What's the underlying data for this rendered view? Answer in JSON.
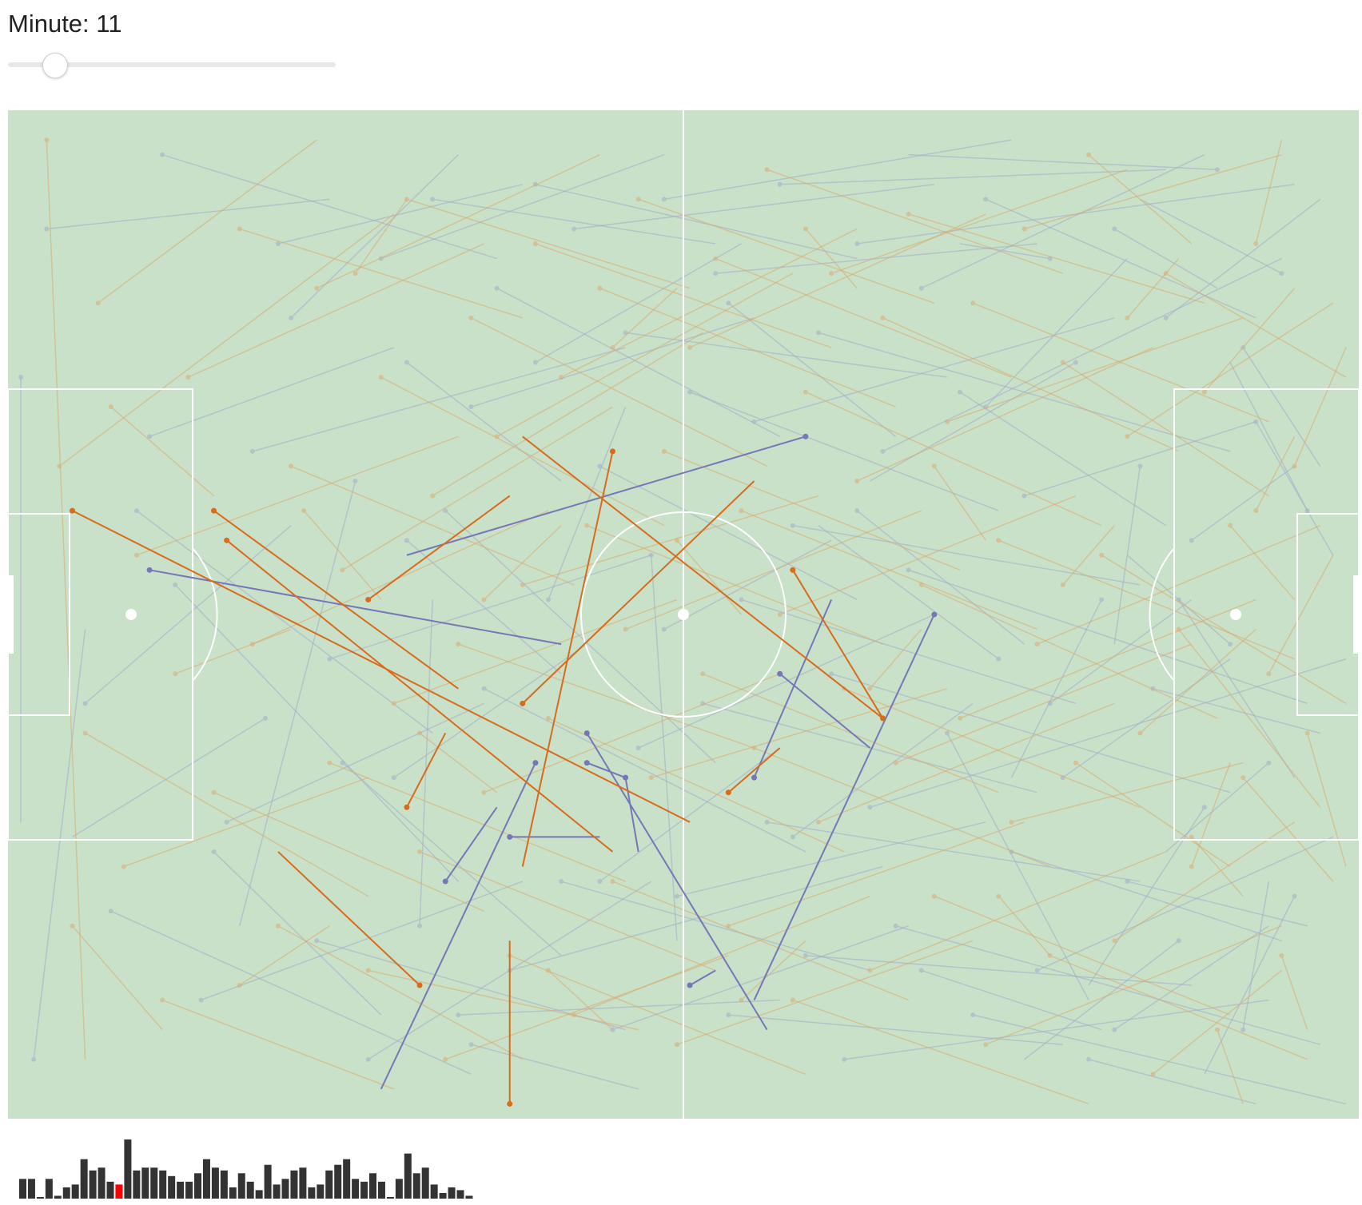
{
  "control": {
    "label_prefix": "Minute: ",
    "minute": 11,
    "min": 0,
    "max": 90
  },
  "colors": {
    "pitch": "#c8e1c8",
    "lines": "#ffffff",
    "team_home": "#d96b1c",
    "team_away": "#7777b8",
    "faded_home": "#d9ab70",
    "faded_away": "#a4acc9",
    "timeline_bar": "#333333",
    "timeline_selected": "#ff0000"
  },
  "pitch_size": [
    105,
    68
  ],
  "highlighted_passes": {
    "away": [
      [
        11,
        31,
        43,
        36
      ],
      [
        45,
        42,
        59,
        62
      ],
      [
        45,
        44,
        48,
        45
      ],
      [
        41,
        44,
        29,
        66
      ],
      [
        72,
        34,
        58,
        60
      ],
      [
        62,
        22,
        31,
        30
      ],
      [
        60,
        38,
        67,
        43
      ],
      [
        58,
        45,
        64,
        33
      ],
      [
        48,
        45,
        49,
        50
      ],
      [
        53,
        59,
        55,
        58
      ],
      [
        34,
        52,
        38,
        47
      ],
      [
        39,
        49,
        46,
        49
      ]
    ],
    "home": [
      [
        5,
        27,
        53,
        48
      ],
      [
        17,
        29,
        47,
        50
      ],
      [
        16,
        27,
        35,
        39
      ],
      [
        28,
        33,
        39,
        26
      ],
      [
        47,
        23,
        40,
        51
      ],
      [
        32,
        59,
        21,
        50
      ],
      [
        56,
        46,
        60,
        43
      ],
      [
        61,
        31,
        68,
        41
      ],
      [
        68,
        41,
        40,
        22
      ],
      [
        40,
        40,
        58,
        25
      ],
      [
        31,
        47,
        34,
        42
      ],
      [
        39,
        67,
        39,
        56
      ]
    ]
  },
  "faded_passes": {
    "away": [
      [
        1,
        18,
        1,
        48
      ],
      [
        2,
        64,
        6,
        35
      ],
      [
        8,
        54,
        36,
        65
      ],
      [
        10,
        27,
        33,
        42
      ],
      [
        12,
        3,
        38,
        10
      ],
      [
        13,
        32,
        35,
        52
      ],
      [
        15,
        60,
        40,
        52
      ],
      [
        17,
        48,
        37,
        40
      ],
      [
        19,
        23,
        48,
        16
      ],
      [
        20,
        41,
        5,
        49
      ],
      [
        22,
        14,
        35,
        3
      ],
      [
        24,
        56,
        48,
        62
      ],
      [
        25,
        37,
        50,
        30
      ],
      [
        27,
        25,
        18,
        55
      ],
      [
        28,
        64,
        50,
        52
      ],
      [
        29,
        10,
        51,
        3
      ],
      [
        30,
        45,
        45,
        36
      ],
      [
        31,
        17,
        43,
        25
      ],
      [
        32,
        55,
        33,
        33
      ],
      [
        33,
        6,
        55,
        9
      ],
      [
        34,
        27,
        55,
        44
      ],
      [
        35,
        61,
        60,
        60
      ],
      [
        36,
        20,
        58,
        14
      ],
      [
        37,
        39,
        62,
        50
      ],
      [
        38,
        12,
        60,
        22
      ],
      [
        39,
        58,
        68,
        51
      ],
      [
        41,
        5,
        66,
        10
      ],
      [
        42,
        33,
        48,
        20
      ],
      [
        43,
        52,
        67,
        58
      ],
      [
        44,
        8,
        72,
        5
      ],
      [
        46,
        24,
        66,
        33
      ],
      [
        47,
        62,
        70,
        55
      ],
      [
        48,
        15,
        73,
        18
      ],
      [
        49,
        43,
        72,
        34
      ],
      [
        50,
        30,
        52,
        56
      ],
      [
        51,
        6,
        78,
        2
      ],
      [
        52,
        53,
        76,
        48
      ],
      [
        53,
        19,
        77,
        27
      ],
      [
        54,
        40,
        80,
        46
      ],
      [
        55,
        11,
        80,
        9
      ],
      [
        56,
        61,
        82,
        63
      ],
      [
        57,
        33,
        83,
        40
      ],
      [
        58,
        21,
        86,
        14
      ],
      [
        59,
        48,
        88,
        52
      ],
      [
        60,
        5,
        90,
        4
      ],
      [
        61,
        28,
        88,
        32
      ],
      [
        62,
        57,
        92,
        59
      ],
      [
        63,
        15,
        95,
        23
      ],
      [
        64,
        38,
        95,
        46
      ],
      [
        65,
        64,
        98,
        60
      ],
      [
        66,
        9,
        100,
        5
      ],
      [
        67,
        47,
        104,
        37
      ],
      [
        68,
        23,
        99,
        10
      ],
      [
        69,
        55,
        102,
        63
      ],
      [
        70,
        31,
        101,
        40
      ],
      [
        71,
        12,
        93,
        3
      ],
      [
        73,
        42,
        84,
        60
      ],
      [
        74,
        19,
        90,
        28
      ],
      [
        75,
        61,
        104,
        67
      ],
      [
        76,
        6,
        97,
        14
      ],
      [
        77,
        37,
        63,
        28
      ],
      [
        78,
        50,
        99,
        56
      ],
      [
        79,
        26,
        97,
        21
      ],
      [
        80,
        58,
        103,
        49
      ],
      [
        81,
        10,
        74,
        9
      ],
      [
        82,
        45,
        95,
        37
      ],
      [
        83,
        17,
        67,
        25
      ],
      [
        84,
        64,
        97,
        67
      ],
      [
        85,
        33,
        78,
        45
      ],
      [
        86,
        8,
        94,
        12
      ],
      [
        87,
        52,
        101,
        55
      ],
      [
        88,
        24,
        86,
        36
      ],
      [
        89,
        39,
        102,
        42
      ],
      [
        90,
        14,
        102,
        6
      ],
      [
        91,
        56,
        79,
        64
      ],
      [
        92,
        29,
        100,
        24
      ],
      [
        93,
        47,
        84,
        59
      ],
      [
        94,
        4,
        70,
        3
      ],
      [
        95,
        36,
        87,
        30
      ],
      [
        96,
        62,
        98,
        52
      ],
      [
        97,
        21,
        103,
        30
      ],
      [
        98,
        44,
        90,
        50
      ],
      [
        99,
        11,
        88,
        6
      ],
      [
        100,
        53,
        93,
        65
      ],
      [
        101,
        27,
        95,
        17
      ],
      [
        6,
        40,
        22,
        28
      ],
      [
        11,
        22,
        30,
        16
      ],
      [
        16,
        50,
        29,
        61
      ],
      [
        21,
        9,
        40,
        5
      ],
      [
        26,
        44,
        43,
        57
      ],
      [
        31,
        29,
        43,
        38
      ],
      [
        36,
        63,
        49,
        66
      ],
      [
        41,
        17,
        57,
        9
      ],
      [
        46,
        52,
        60,
        43
      ],
      [
        51,
        35,
        64,
        29
      ],
      [
        56,
        13,
        69,
        22
      ],
      [
        61,
        49,
        75,
        40
      ],
      [
        66,
        27,
        79,
        36
      ],
      [
        71,
        58,
        85,
        62
      ],
      [
        76,
        20,
        87,
        10
      ],
      [
        81,
        40,
        92,
        33
      ],
      [
        86,
        62,
        98,
        55
      ],
      [
        91,
        33,
        100,
        45
      ],
      [
        96,
        16,
        102,
        24
      ],
      [
        3,
        8,
        25,
        6
      ]
    ],
    "home": [
      [
        3,
        2,
        6,
        64
      ],
      [
        4,
        24,
        30,
        7
      ],
      [
        6,
        42,
        28,
        53
      ],
      [
        7,
        13,
        24,
        2
      ],
      [
        9,
        51,
        28,
        45
      ],
      [
        10,
        30,
        35,
        22
      ],
      [
        12,
        60,
        30,
        66
      ],
      [
        14,
        18,
        37,
        9
      ],
      [
        16,
        46,
        37,
        54
      ],
      [
        18,
        8,
        40,
        14
      ],
      [
        19,
        36,
        42,
        27
      ],
      [
        21,
        55,
        40,
        64
      ],
      [
        22,
        24,
        44,
        32
      ],
      [
        24,
        12,
        46,
        3
      ],
      [
        25,
        44,
        48,
        52
      ],
      [
        26,
        31,
        47,
        20
      ],
      [
        28,
        58,
        49,
        62
      ],
      [
        29,
        18,
        51,
        28
      ],
      [
        30,
        40,
        52,
        33
      ],
      [
        31,
        6,
        53,
        12
      ],
      [
        32,
        50,
        55,
        58
      ],
      [
        33,
        26,
        54,
        15
      ],
      [
        34,
        64,
        56,
        57
      ],
      [
        35,
        36,
        58,
        43
      ],
      [
        36,
        14,
        59,
        24
      ],
      [
        37,
        46,
        60,
        38
      ],
      [
        38,
        22,
        61,
        11
      ],
      [
        39,
        57,
        62,
        65
      ],
      [
        40,
        32,
        63,
        26
      ],
      [
        41,
        9,
        64,
        16
      ],
      [
        42,
        41,
        65,
        50
      ],
      [
        43,
        18,
        66,
        8
      ],
      [
        44,
        61,
        67,
        53
      ],
      [
        45,
        28,
        68,
        36
      ],
      [
        46,
        12,
        69,
        20
      ],
      [
        47,
        52,
        70,
        60
      ],
      [
        48,
        35,
        71,
        27
      ],
      [
        49,
        6,
        72,
        13
      ],
      [
        50,
        45,
        73,
        39
      ],
      [
        51,
        23,
        74,
        31
      ],
      [
        52,
        63,
        75,
        56
      ],
      [
        53,
        16,
        76,
        7
      ],
      [
        54,
        38,
        77,
        46
      ],
      [
        55,
        10,
        78,
        18
      ],
      [
        56,
        55,
        79,
        48
      ],
      [
        57,
        27,
        80,
        35
      ],
      [
        58,
        43,
        81,
        51
      ],
      [
        59,
        4,
        82,
        11
      ],
      [
        60,
        34,
        83,
        26
      ],
      [
        61,
        60,
        84,
        67
      ],
      [
        62,
        19,
        85,
        28
      ],
      [
        63,
        48,
        86,
        40
      ],
      [
        64,
        11,
        87,
        4
      ],
      [
        65,
        39,
        88,
        47
      ],
      [
        66,
        25,
        89,
        16
      ],
      [
        67,
        58,
        90,
        50
      ],
      [
        68,
        14,
        91,
        23
      ],
      [
        69,
        44,
        92,
        36
      ],
      [
        70,
        7,
        93,
        13
      ],
      [
        71,
        32,
        94,
        41
      ],
      [
        72,
        53,
        95,
        61
      ],
      [
        73,
        21,
        96,
        14
      ],
      [
        74,
        41,
        97,
        33
      ],
      [
        75,
        13,
        98,
        21
      ],
      [
        76,
        63,
        99,
        55
      ],
      [
        77,
        29,
        100,
        37
      ],
      [
        78,
        48,
        96,
        44
      ],
      [
        79,
        8,
        99,
        3
      ],
      [
        80,
        36,
        102,
        28
      ],
      [
        81,
        57,
        101,
        64
      ],
      [
        82,
        17,
        98,
        26
      ],
      [
        83,
        44,
        95,
        51
      ],
      [
        84,
        3,
        92,
        9
      ],
      [
        85,
        30,
        104,
        40
      ],
      [
        86,
        56,
        100,
        48
      ],
      [
        87,
        22,
        103,
        13
      ],
      [
        88,
        42,
        97,
        35
      ],
      [
        89,
        65,
        99,
        58
      ],
      [
        90,
        11,
        104,
        18
      ],
      [
        91,
        35,
        102,
        47
      ],
      [
        92,
        51,
        95,
        44
      ],
      [
        93,
        19,
        100,
        12
      ],
      [
        94,
        62,
        96,
        67
      ],
      [
        95,
        28,
        100,
        33
      ],
      [
        96,
        45,
        103,
        52
      ],
      [
        97,
        9,
        99,
        2
      ],
      [
        98,
        38,
        103,
        30
      ],
      [
        99,
        57,
        101,
        62
      ],
      [
        100,
        24,
        104,
        16
      ],
      [
        101,
        42,
        104,
        51
      ],
      [
        8,
        20,
        16,
        26
      ],
      [
        13,
        38,
        22,
        35
      ],
      [
        18,
        59,
        25,
        55
      ],
      [
        23,
        27,
        29,
        33
      ],
      [
        27,
        11,
        31,
        6
      ],
      [
        32,
        42,
        38,
        46
      ],
      [
        37,
        33,
        43,
        28
      ],
      [
        42,
        58,
        47,
        62
      ],
      [
        47,
        16,
        52,
        12
      ],
      [
        52,
        29,
        57,
        34
      ],
      [
        57,
        60,
        62,
        56
      ],
      [
        62,
        8,
        66,
        12
      ],
      [
        67,
        39,
        71,
        35
      ],
      [
        72,
        24,
        76,
        29
      ],
      [
        77,
        53,
        81,
        57
      ],
      [
        82,
        32,
        86,
        28
      ],
      [
        87,
        14,
        91,
        10
      ],
      [
        92,
        49,
        96,
        53
      ],
      [
        97,
        27,
        100,
        22
      ],
      [
        5,
        55,
        12,
        62
      ]
    ]
  },
  "timeline_counts": [
    7,
    7,
    0,
    7,
    1,
    4,
    5,
    14,
    10,
    11,
    6,
    5,
    21,
    10,
    11,
    11,
    10,
    8,
    6,
    6,
    9,
    14,
    11,
    10,
    4,
    9,
    6,
    3,
    12,
    5,
    7,
    10,
    11,
    4,
    5,
    10,
    12,
    14,
    7,
    6,
    9,
    6,
    0,
    7,
    16,
    9,
    11,
    5,
    2,
    4,
    3,
    1
  ],
  "timeline_selected_index": 11
}
